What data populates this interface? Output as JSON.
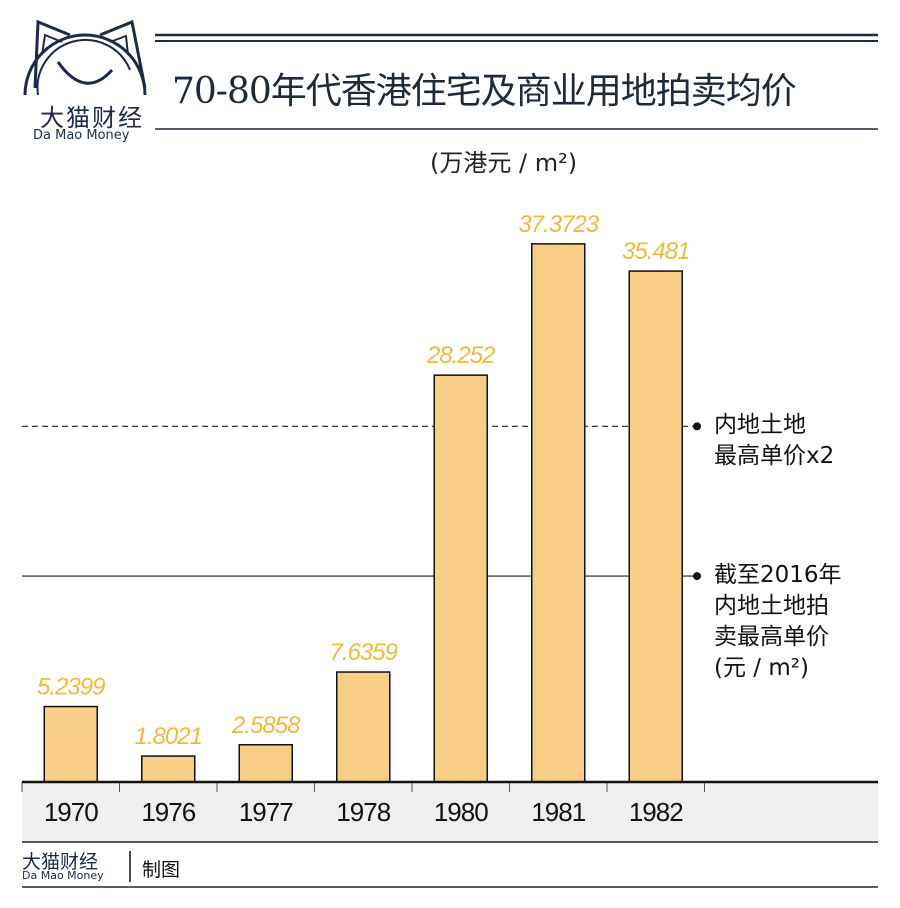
{
  "brand": {
    "name_cn": "大猫财经",
    "name_en": "Da Mao Money",
    "footer_suffix": "制图"
  },
  "chart_data": {
    "type": "bar",
    "title": "70-80年代香港住宅及商业用地拍卖均价",
    "unit": "(万港元 / m²)",
    "categories": [
      "1970",
      "1976",
      "1977",
      "1978",
      "1980",
      "1981",
      "1982"
    ],
    "values": [
      5.2399,
      1.8021,
      2.5858,
      7.6359,
      28.252,
      37.3723,
      35.481
    ],
    "value_labels": [
      "5.2399",
      "1.8021",
      "2.5858",
      "7.6359",
      "28.252",
      "37.3723",
      "35.481"
    ],
    "ylim": [
      0,
      40
    ],
    "grid": false,
    "bar_color": "#f8cd85",
    "label_color": "#f0b93a",
    "reference_lines": [
      {
        "value": 24.7,
        "style": "dashed",
        "label": [
          "内地土地",
          "最高单价x2"
        ]
      },
      {
        "value": 14.3,
        "style": "solid",
        "label": [
          "截至2016年",
          "内地土地拍",
          "卖最高单价",
          "(元 / m²)"
        ]
      }
    ]
  }
}
